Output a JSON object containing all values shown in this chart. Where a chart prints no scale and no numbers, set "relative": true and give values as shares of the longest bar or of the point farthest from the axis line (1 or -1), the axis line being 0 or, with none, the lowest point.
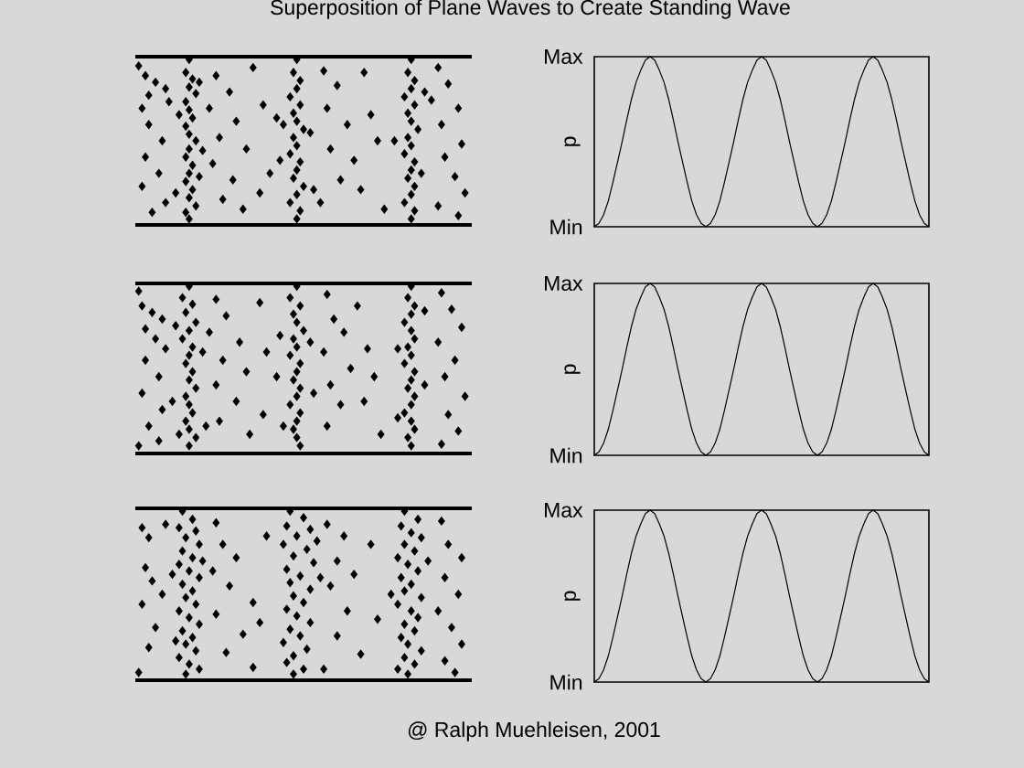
{
  "chart_data": [
    {
      "type": "line",
      "title": "Superposition of Plane Waves to Create Standing Wave",
      "ylabel": "p",
      "relative": true,
      "annotations": [
        "Max",
        "Min"
      ],
      "categories": [
        null,
        null,
        null,
        null,
        null,
        null,
        null,
        null,
        null,
        null,
        null,
        null,
        null,
        null,
        null,
        null,
        null,
        null,
        null,
        null,
        null,
        null,
        null,
        null,
        null,
        null,
        null,
        null,
        null,
        null,
        null,
        null,
        null,
        null,
        null,
        null,
        null,
        null,
        null,
        null,
        null,
        null,
        null,
        null,
        null,
        null,
        null,
        null,
        null,
        null,
        null,
        null,
        null,
        null,
        null,
        null,
        null,
        null,
        null,
        null,
        null,
        null,
        null,
        null,
        null,
        null,
        null,
        null,
        null,
        null,
        null,
        null,
        null
      ],
      "series": [
        {
          "color": "#000000",
          "values": [
            0,
            0.02,
            0.07,
            0.15,
            0.26,
            0.38,
            0.5,
            0.63,
            0.75,
            0.85,
            0.92,
            0.98,
            1,
            0.98,
            0.92,
            0.85,
            0.75,
            0.63,
            0.5,
            0.38,
            0.26,
            0.15,
            0.07,
            0.02,
            0,
            0.02,
            0.07,
            0.15,
            0.26,
            0.38,
            0.5,
            0.63,
            0.75,
            0.85,
            0.92,
            0.98,
            1,
            0.98,
            0.92,
            0.85,
            0.75,
            0.63,
            0.5,
            0.38,
            0.26,
            0.15,
            0.07,
            0.02,
            0,
            0.02,
            0.07,
            0.15,
            0.26,
            0.38,
            0.5,
            0.63,
            0.75,
            0.85,
            0.92,
            0.98,
            1,
            0.98,
            0.92,
            0.85,
            0.75,
            0.63,
            0.5,
            0.38,
            0.26,
            0.15,
            0.07,
            0.02,
            0
          ]
        }
      ]
    },
    {
      "type": "line",
      "ylabel": "p",
      "relative": true,
      "annotations": [
        "Max",
        "Min"
      ],
      "categories": [
        null,
        null,
        null,
        null,
        null,
        null,
        null,
        null,
        null,
        null,
        null,
        null,
        null,
        null,
        null,
        null,
        null,
        null,
        null,
        null,
        null,
        null,
        null,
        null,
        null,
        null,
        null,
        null,
        null,
        null,
        null,
        null,
        null,
        null,
        null,
        null,
        null,
        null,
        null,
        null,
        null,
        null,
        null,
        null,
        null,
        null,
        null,
        null,
        null,
        null,
        null,
        null,
        null,
        null,
        null,
        null,
        null,
        null,
        null,
        null,
        null,
        null,
        null,
        null,
        null,
        null,
        null,
        null,
        null,
        null,
        null,
        null,
        null
      ],
      "series": [
        {
          "color": "#000000",
          "values": [
            0,
            0.02,
            0.07,
            0.15,
            0.26,
            0.38,
            0.5,
            0.63,
            0.75,
            0.85,
            0.92,
            0.98,
            1,
            0.98,
            0.92,
            0.85,
            0.75,
            0.63,
            0.5,
            0.38,
            0.26,
            0.15,
            0.07,
            0.02,
            0,
            0.02,
            0.07,
            0.15,
            0.26,
            0.38,
            0.5,
            0.63,
            0.75,
            0.85,
            0.92,
            0.98,
            1,
            0.98,
            0.92,
            0.85,
            0.75,
            0.63,
            0.5,
            0.38,
            0.26,
            0.15,
            0.07,
            0.02,
            0,
            0.02,
            0.07,
            0.15,
            0.26,
            0.38,
            0.5,
            0.63,
            0.75,
            0.85,
            0.92,
            0.98,
            1,
            0.98,
            0.92,
            0.85,
            0.75,
            0.63,
            0.5,
            0.38,
            0.26,
            0.15,
            0.07,
            0.02,
            0
          ]
        }
      ]
    },
    {
      "type": "line",
      "ylabel": "p",
      "relative": true,
      "annotations": [
        "Max",
        "Min",
        "@ Ralph Muehleisen, 2001"
      ],
      "categories": [
        null,
        null,
        null,
        null,
        null,
        null,
        null,
        null,
        null,
        null,
        null,
        null,
        null,
        null,
        null,
        null,
        null,
        null,
        null,
        null,
        null,
        null,
        null,
        null,
        null,
        null,
        null,
        null,
        null,
        null,
        null,
        null,
        null,
        null,
        null,
        null,
        null,
        null,
        null,
        null,
        null,
        null,
        null,
        null,
        null,
        null,
        null,
        null,
        null,
        null,
        null,
        null,
        null,
        null,
        null,
        null,
        null,
        null,
        null,
        null,
        null,
        null,
        null,
        null,
        null,
        null,
        null,
        null,
        null,
        null,
        null,
        null,
        null
      ],
      "series": [
        {
          "color": "#000000",
          "values": [
            0,
            0.02,
            0.07,
            0.15,
            0.26,
            0.38,
            0.5,
            0.63,
            0.75,
            0.85,
            0.92,
            0.98,
            1,
            0.98,
            0.92,
            0.85,
            0.75,
            0.63,
            0.5,
            0.38,
            0.26,
            0.15,
            0.07,
            0.02,
            0,
            0.02,
            0.07,
            0.15,
            0.26,
            0.38,
            0.5,
            0.63,
            0.75,
            0.85,
            0.92,
            0.98,
            1,
            0.98,
            0.92,
            0.85,
            0.75,
            0.63,
            0.5,
            0.38,
            0.26,
            0.15,
            0.07,
            0.02,
            0,
            0.02,
            0.07,
            0.15,
            0.26,
            0.38,
            0.5,
            0.63,
            0.75,
            0.85,
            0.92,
            0.98,
            1,
            0.98,
            0.92,
            0.85,
            0.75,
            0.63,
            0.5,
            0.38,
            0.26,
            0.15,
            0.07,
            0.02,
            0
          ]
        }
      ]
    }
  ]
}
